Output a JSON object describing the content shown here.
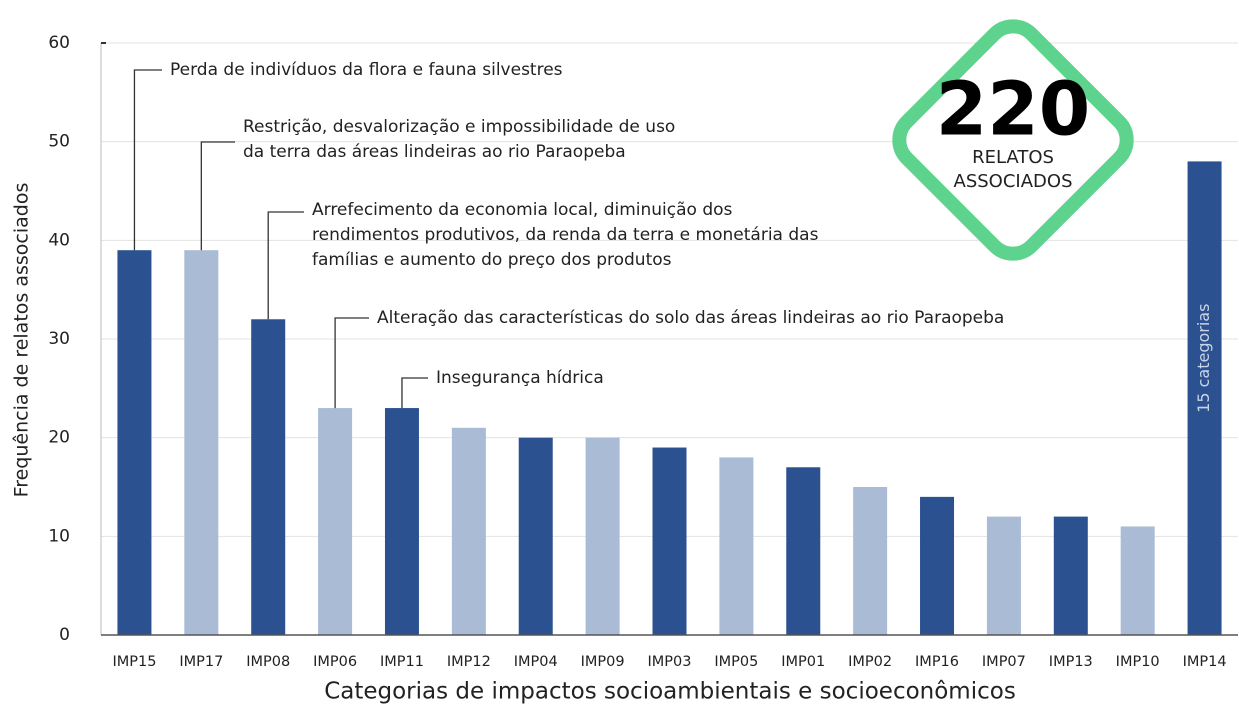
{
  "chart_data": {
    "type": "bar",
    "x_label": "Categorias de impactos socioambientais e socioeconômicos",
    "y_label": "Frequência de relatos associados",
    "categories": [
      "IMP15",
      "IMP17",
      "IMP08",
      "IMP06",
      "IMP11",
      "IMP12",
      "IMP04",
      "IMP09",
      "IMP03",
      "IMP05",
      "IMP01",
      "IMP02",
      "IMP16",
      "IMP07",
      "IMP13",
      "IMP10",
      "IMP14"
    ],
    "values": [
      39,
      39,
      32,
      23,
      23,
      21,
      20,
      20,
      19,
      18,
      17,
      15,
      14,
      12,
      12,
      11,
      48
    ],
    "colors": [
      "#2b5190",
      "#a9bbd5",
      "#2b5190",
      "#a9bbd5",
      "#2b5190",
      "#a9bbd5",
      "#2b5190",
      "#a9bbd5",
      "#2b5190",
      "#a9bbd5",
      "#2b5190",
      "#a9bbd5",
      "#2b5190",
      "#a9bbd5",
      "#2b5190",
      "#a9bbd5",
      "#2b5190"
    ],
    "ylim": [
      0,
      60
    ],
    "yticks": [
      0,
      10,
      20,
      30,
      40,
      50,
      60
    ],
    "grid": true,
    "annotations": [
      [
        "Perda de indivíduos da flora e fauna silvestres"
      ],
      [
        "Restrição, desvalorização e impossibilidade de uso",
        "da terra das áreas lindeiras ao rio Paraopeba"
      ],
      [
        "Arrefecimento da economia local, diminuição dos",
        "rendimentos produtivos, da renda da terra e monetária das",
        "famílias e aumento do preço dos produtos"
      ],
      [
        "Alteração das características do solo das áreas lindeiras ao rio Paraopeba"
      ],
      [
        "Insegurança hídrica"
      ]
    ],
    "last_bar_label": "15 categorias",
    "badge": {
      "number": "220",
      "lines": [
        "RELATOS",
        "ASSOCIADOS"
      ],
      "color": "#5dd38e"
    }
  }
}
